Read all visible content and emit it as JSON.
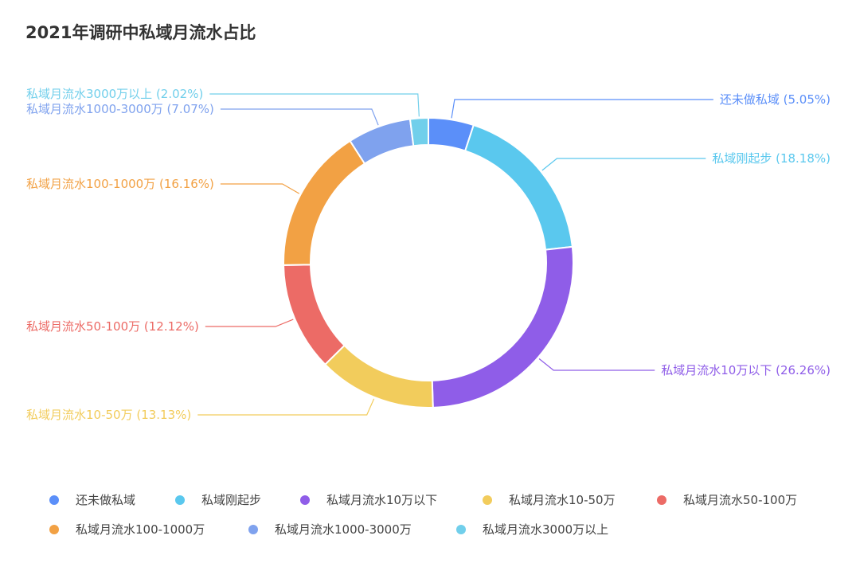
{
  "chart_data": {
    "type": "pie",
    "variant": "donut",
    "title": "2021年调研中私域月流水占比",
    "slices": [
      {
        "name": "还未做私域",
        "value": 5.05,
        "label": "还未做私域 (5.05%)",
        "color": "#5B8FF9"
      },
      {
        "name": "私域刚起步",
        "value": 18.18,
        "label": "私域刚起步 (18.18%)",
        "color": "#5AC8EE"
      },
      {
        "name": "私域月流水10万以下",
        "value": 26.26,
        "label": "私域月流水10万以下 (26.26%)",
        "color": "#8F5DE8"
      },
      {
        "name": "私域月流水10-50万",
        "value": 13.13,
        "label": "私域月流水10-50万 (13.13%)",
        "color": "#F2CC5C"
      },
      {
        "name": "私域月流水50-100万",
        "value": 12.12,
        "label": "私域月流水50-100万 (12.12%)",
        "color": "#EC6B66"
      },
      {
        "name": "私域月流水100-1000万",
        "value": 16.16,
        "label": "私域月流水100-1000万 (16.16%)",
        "color": "#F2A144"
      },
      {
        "name": "私域月流水1000-3000万",
        "value": 7.07,
        "label": "私域月流水1000-3000万 (7.07%)",
        "color": "#7FA2EE"
      },
      {
        "name": "私域月流水3000万以上",
        "value": 2.02,
        "label": "私域月流水3000万以上 (2.02%)",
        "color": "#71CFEB"
      }
    ],
    "legend": "bottom"
  }
}
